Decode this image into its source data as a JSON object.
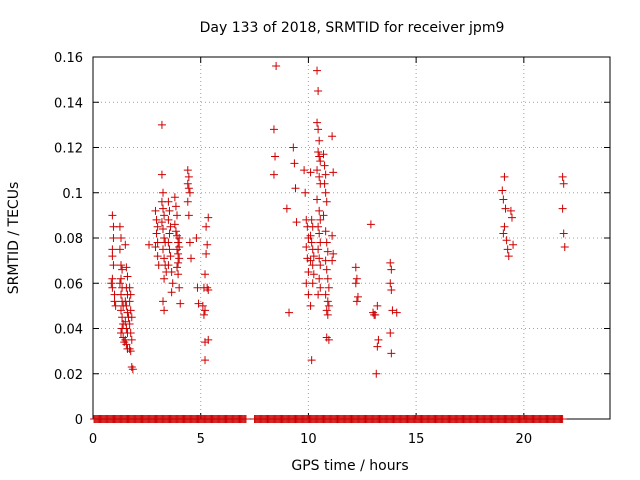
{
  "chart_data": {
    "type": "scatter",
    "title": "Day 133 of 2018, SRMTID for receiver jpm9",
    "xlabel": "GPS time / hours",
    "ylabel": "SRMTID / TECUs",
    "xlim": [
      0,
      24
    ],
    "ylim": [
      0,
      0.16
    ],
    "grid": true,
    "marker": "+",
    "color": "#cc0000",
    "xticks": [
      0,
      5,
      10,
      15,
      20
    ],
    "xtick_labels": [
      "0",
      "5",
      "10",
      "15",
      "20"
    ],
    "yticks": [
      0,
      0.02,
      0.04,
      0.06,
      0.08,
      0.1,
      0.12,
      0.14,
      0.16
    ],
    "ytick_labels": [
      "0",
      "0.02",
      "0.04",
      "0.06",
      "0.08",
      "0.1",
      "0.12",
      "0.14",
      "0.16"
    ],
    "baseline": {
      "y": 0,
      "x_ranges": [
        [
          0.05,
          7.1
        ],
        [
          7.5,
          21.8
        ]
      ],
      "step": 0.05
    },
    "points": [
      [
        0.9,
        0.09
      ],
      [
        0.95,
        0.085
      ],
      [
        0.95,
        0.08
      ],
      [
        0.9,
        0.075
      ],
      [
        0.9,
        0.072
      ],
      [
        0.95,
        0.068
      ],
      [
        0.9,
        0.062
      ],
      [
        0.85,
        0.06
      ],
      [
        0.9,
        0.058
      ],
      [
        1.0,
        0.055
      ],
      [
        1.0,
        0.052
      ],
      [
        1.05,
        0.05
      ],
      [
        1.25,
        0.085
      ],
      [
        1.3,
        0.08
      ],
      [
        1.25,
        0.075
      ],
      [
        1.3,
        0.068
      ],
      [
        1.35,
        0.066
      ],
      [
        1.3,
        0.062
      ],
      [
        1.25,
        0.06
      ],
      [
        1.35,
        0.058
      ],
      [
        1.3,
        0.055
      ],
      [
        1.35,
        0.052
      ],
      [
        1.4,
        0.05
      ],
      [
        1.3,
        0.048
      ],
      [
        1.35,
        0.045
      ],
      [
        1.4,
        0.042
      ],
      [
        1.35,
        0.04
      ],
      [
        1.3,
        0.038
      ],
      [
        1.4,
        0.036
      ],
      [
        1.45,
        0.034
      ],
      [
        1.5,
        0.077
      ],
      [
        1.55,
        0.067
      ],
      [
        1.6,
        0.063
      ],
      [
        1.55,
        0.058
      ],
      [
        1.6,
        0.055
      ],
      [
        1.5,
        0.052
      ],
      [
        1.55,
        0.05
      ],
      [
        1.6,
        0.047
      ],
      [
        1.65,
        0.045
      ],
      [
        1.5,
        0.043
      ],
      [
        1.55,
        0.04
      ],
      [
        1.6,
        0.038
      ],
      [
        1.5,
        0.035
      ],
      [
        1.55,
        0.033
      ],
      [
        1.6,
        0.031
      ],
      [
        1.7,
        0.058
      ],
      [
        1.75,
        0.055
      ],
      [
        1.7,
        0.052
      ],
      [
        1.75,
        0.048
      ],
      [
        1.8,
        0.045
      ],
      [
        1.7,
        0.042
      ],
      [
        1.75,
        0.038
      ],
      [
        1.8,
        0.035
      ],
      [
        1.7,
        0.031
      ],
      [
        1.75,
        0.03
      ],
      [
        1.8,
        0.023
      ],
      [
        1.85,
        0.022
      ],
      [
        2.6,
        0.077
      ],
      [
        2.9,
        0.092
      ],
      [
        2.95,
        0.088
      ],
      [
        3.0,
        0.085
      ],
      [
        2.95,
        0.082
      ],
      [
        3.0,
        0.078
      ],
      [
        2.9,
        0.076
      ],
      [
        3.0,
        0.072
      ],
      [
        3.05,
        0.068
      ],
      [
        3.2,
        0.13
      ],
      [
        3.2,
        0.108
      ],
      [
        3.25,
        0.1
      ],
      [
        3.2,
        0.096
      ],
      [
        3.25,
        0.093
      ],
      [
        3.3,
        0.09
      ],
      [
        3.2,
        0.087
      ],
      [
        3.25,
        0.084
      ],
      [
        3.3,
        0.08
      ],
      [
        3.35,
        0.078
      ],
      [
        3.25,
        0.075
      ],
      [
        3.3,
        0.071
      ],
      [
        3.35,
        0.068
      ],
      [
        3.4,
        0.065
      ],
      [
        3.3,
        0.062
      ],
      [
        3.25,
        0.052
      ],
      [
        3.3,
        0.048
      ],
      [
        3.5,
        0.096
      ],
      [
        3.55,
        0.092
      ],
      [
        3.5,
        0.088
      ],
      [
        3.6,
        0.085
      ],
      [
        3.55,
        0.082
      ],
      [
        3.5,
        0.078
      ],
      [
        3.55,
        0.075
      ],
      [
        3.6,
        0.072
      ],
      [
        3.5,
        0.068
      ],
      [
        3.65,
        0.065
      ],
      [
        3.7,
        0.06
      ],
      [
        3.65,
        0.056
      ],
      [
        3.8,
        0.098
      ],
      [
        3.85,
        0.094
      ],
      [
        3.9,
        0.09
      ],
      [
        3.8,
        0.086
      ],
      [
        3.85,
        0.083
      ],
      [
        3.9,
        0.081
      ],
      [
        4.0,
        0.08
      ],
      [
        3.95,
        0.078
      ],
      [
        4.0,
        0.076
      ],
      [
        3.9,
        0.075
      ],
      [
        3.95,
        0.073
      ],
      [
        4.0,
        0.071
      ],
      [
        3.95,
        0.069
      ],
      [
        3.9,
        0.067
      ],
      [
        3.95,
        0.064
      ],
      [
        4.0,
        0.058
      ],
      [
        4.05,
        0.051
      ],
      [
        4.4,
        0.11
      ],
      [
        4.45,
        0.107
      ],
      [
        4.4,
        0.104
      ],
      [
        4.45,
        0.102
      ],
      [
        4.5,
        0.1
      ],
      [
        4.4,
        0.096
      ],
      [
        4.45,
        0.09
      ],
      [
        4.5,
        0.078
      ],
      [
        4.55,
        0.071
      ],
      [
        4.8,
        0.08
      ],
      [
        4.85,
        0.058
      ],
      [
        4.9,
        0.051
      ],
      [
        5.1,
        0.05
      ],
      [
        5.15,
        0.046
      ],
      [
        5.2,
        0.048
      ],
      [
        5.15,
        0.058
      ],
      [
        5.2,
        0.064
      ],
      [
        5.25,
        0.073
      ],
      [
        5.3,
        0.077
      ],
      [
        5.25,
        0.085
      ],
      [
        5.35,
        0.089
      ],
      [
        5.2,
        0.034
      ],
      [
        5.35,
        0.035
      ],
      [
        5.2,
        0.026
      ],
      [
        5.3,
        0.058
      ],
      [
        5.35,
        0.057
      ],
      [
        8.4,
        0.128
      ],
      [
        8.45,
        0.116
      ],
      [
        8.5,
        0.156
      ],
      [
        8.4,
        0.108
      ],
      [
        9.0,
        0.093
      ],
      [
        9.1,
        0.047
      ],
      [
        9.3,
        0.12
      ],
      [
        9.35,
        0.113
      ],
      [
        9.4,
        0.102
      ],
      [
        9.45,
        0.087
      ],
      [
        9.8,
        0.11
      ],
      [
        9.85,
        0.1
      ],
      [
        9.9,
        0.088
      ],
      [
        9.95,
        0.085
      ],
      [
        10.0,
        0.08
      ],
      [
        9.9,
        0.076
      ],
      [
        9.95,
        0.071
      ],
      [
        10.0,
        0.065
      ],
      [
        9.9,
        0.06
      ],
      [
        10.0,
        0.055
      ],
      [
        10.1,
        0.109
      ],
      [
        10.15,
        0.088
      ],
      [
        10.2,
        0.085
      ],
      [
        10.1,
        0.081
      ],
      [
        10.15,
        0.078
      ],
      [
        10.2,
        0.075
      ],
      [
        10.25,
        0.072
      ],
      [
        10.1,
        0.07
      ],
      [
        10.2,
        0.068
      ],
      [
        10.25,
        0.064
      ],
      [
        10.2,
        0.06
      ],
      [
        10.1,
        0.05
      ],
      [
        10.15,
        0.026
      ],
      [
        10.4,
        0.154
      ],
      [
        10.45,
        0.145
      ],
      [
        10.4,
        0.131
      ],
      [
        10.45,
        0.128
      ],
      [
        10.5,
        0.123
      ],
      [
        10.45,
        0.118
      ],
      [
        10.5,
        0.116
      ],
      [
        10.55,
        0.114
      ],
      [
        10.4,
        0.11
      ],
      [
        10.5,
        0.107
      ],
      [
        10.55,
        0.104
      ],
      [
        10.4,
        0.097
      ],
      [
        10.5,
        0.092
      ],
      [
        10.55,
        0.088
      ],
      [
        10.45,
        0.085
      ],
      [
        10.5,
        0.082
      ],
      [
        10.55,
        0.078
      ],
      [
        10.45,
        0.075
      ],
      [
        10.5,
        0.071
      ],
      [
        10.55,
        0.068
      ],
      [
        10.5,
        0.062
      ],
      [
        10.55,
        0.058
      ],
      [
        10.45,
        0.055
      ],
      [
        10.7,
        0.117
      ],
      [
        10.75,
        0.112
      ],
      [
        10.8,
        0.108
      ],
      [
        10.75,
        0.104
      ],
      [
        10.8,
        0.1
      ],
      [
        10.85,
        0.096
      ],
      [
        10.7,
        0.09
      ],
      [
        10.8,
        0.083
      ],
      [
        10.85,
        0.078
      ],
      [
        10.9,
        0.074
      ],
      [
        10.8,
        0.07
      ],
      [
        10.85,
        0.066
      ],
      [
        10.9,
        0.062
      ],
      [
        10.95,
        0.058
      ],
      [
        10.8,
        0.055
      ],
      [
        10.9,
        0.052
      ],
      [
        10.95,
        0.05
      ],
      [
        10.85,
        0.048
      ],
      [
        10.9,
        0.046
      ],
      [
        10.85,
        0.036
      ],
      [
        10.95,
        0.035
      ],
      [
        11.1,
        0.125
      ],
      [
        11.15,
        0.109
      ],
      [
        11.1,
        0.081
      ],
      [
        11.15,
        0.073
      ],
      [
        11.1,
        0.07
      ],
      [
        12.2,
        0.067
      ],
      [
        12.25,
        0.062
      ],
      [
        12.2,
        0.06
      ],
      [
        12.3,
        0.054
      ],
      [
        12.25,
        0.052
      ],
      [
        12.9,
        0.086
      ],
      [
        13.0,
        0.047
      ],
      [
        13.05,
        0.046
      ],
      [
        13.1,
        0.046
      ],
      [
        13.15,
        0.02
      ],
      [
        13.2,
        0.032
      ],
      [
        13.25,
        0.035
      ],
      [
        13.2,
        0.05
      ],
      [
        13.8,
        0.069
      ],
      [
        13.85,
        0.066
      ],
      [
        13.8,
        0.06
      ],
      [
        13.85,
        0.057
      ],
      [
        13.9,
        0.048
      ],
      [
        13.8,
        0.038
      ],
      [
        13.85,
        0.029
      ],
      [
        14.1,
        0.047
      ],
      [
        19.0,
        0.101
      ],
      [
        19.05,
        0.097
      ],
      [
        19.1,
        0.107
      ],
      [
        19.15,
        0.093
      ],
      [
        19.1,
        0.085
      ],
      [
        19.05,
        0.082
      ],
      [
        19.2,
        0.079
      ],
      [
        19.25,
        0.075
      ],
      [
        19.3,
        0.072
      ],
      [
        19.4,
        0.092
      ],
      [
        19.45,
        0.089
      ],
      [
        19.5,
        0.077
      ],
      [
        21.8,
        0.107
      ],
      [
        21.85,
        0.104
      ],
      [
        21.8,
        0.093
      ],
      [
        21.85,
        0.082
      ],
      [
        21.9,
        0.076
      ]
    ]
  }
}
